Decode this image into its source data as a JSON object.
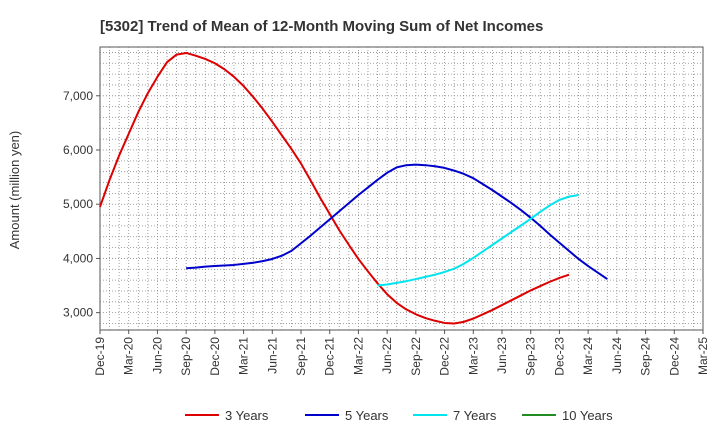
{
  "chart_data": {
    "type": "line",
    "title": "[5302]  Trend of Mean of 12-Month Moving Sum of Net Incomes",
    "xlabel": "",
    "ylabel": "Amount (million yen)",
    "x_tick_labels": [
      "Dec-19",
      "Mar-20",
      "Jun-20",
      "Sep-20",
      "Dec-20",
      "Mar-21",
      "Jun-21",
      "Sep-21",
      "Dec-21",
      "Mar-22",
      "Jun-22",
      "Sep-22",
      "Dec-22",
      "Mar-23",
      "Jun-23",
      "Sep-23",
      "Dec-23",
      "Mar-24",
      "Jun-24",
      "Sep-24",
      "Dec-24",
      "Mar-25"
    ],
    "y_ticks": [
      3000,
      4000,
      5000,
      6000,
      7000
    ],
    "ylim": [
      2680,
      7900
    ],
    "grid": true,
    "legend_position": "bottom",
    "series": [
      {
        "name": "3 Years",
        "color": "#dd0000",
        "start_index": 0,
        "values": [
          4950,
          5450,
          5900,
          6300,
          6700,
          7050,
          7350,
          7620,
          7760,
          7790,
          7740,
          7680,
          7600,
          7490,
          7350,
          7180,
          6980,
          6760,
          6520,
          6270,
          6020,
          5750,
          5440,
          5120,
          4820,
          4520,
          4250,
          3990,
          3760,
          3540,
          3340,
          3180,
          3060,
          2970,
          2900,
          2850,
          2810,
          2800,
          2830,
          2890,
          2970,
          3050,
          3140,
          3230,
          3320,
          3410,
          3490,
          3570,
          3640,
          3700
        ]
      },
      {
        "name": "5 Years",
        "color": "#0000cc",
        "start_index": 9,
        "values": [
          3820,
          3830,
          3850,
          3860,
          3870,
          3880,
          3900,
          3920,
          3950,
          3990,
          4050,
          4140,
          4280,
          4420,
          4570,
          4720,
          4870,
          5020,
          5170,
          5310,
          5450,
          5580,
          5680,
          5720,
          5730,
          5720,
          5700,
          5670,
          5620,
          5560,
          5480,
          5370,
          5260,
          5140,
          5020,
          4890,
          4750,
          4600,
          4440,
          4290,
          4140,
          3990,
          3860,
          3740,
          3620
        ]
      },
      {
        "name": "7 Years",
        "color": "#00e5ee",
        "start_index": 29,
        "values": [
          3500,
          3520,
          3550,
          3580,
          3620,
          3660,
          3700,
          3750,
          3810,
          3900,
          4010,
          4130,
          4250,
          4370,
          4490,
          4610,
          4730,
          4860,
          4980,
          5080,
          5140,
          5170
        ]
      },
      {
        "name": "10 Years",
        "color": "#228b22",
        "start_index": 0,
        "values": []
      }
    ]
  }
}
